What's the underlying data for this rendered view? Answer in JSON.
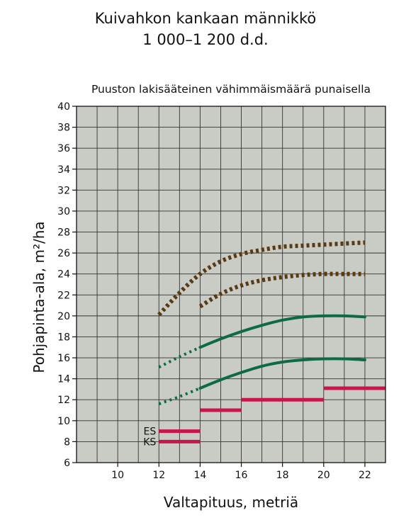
{
  "header": {
    "title_line1": "Kuivahkon kankaan männikkö",
    "title_line2": "1 000–1 200 d.d."
  },
  "chart_data": {
    "type": "line",
    "subtitle": "Puuston lakisääteinen vähimmäismäärä punaisella",
    "xlabel": "Valtapituus, metriä",
    "ylabel": "Pohjapinta-ala, m²/ha",
    "xlim": [
      8,
      23
    ],
    "ylim": [
      6,
      40
    ],
    "x_ticks": [
      10,
      12,
      14,
      16,
      18,
      20,
      22
    ],
    "y_ticks": [
      6,
      8,
      10,
      12,
      14,
      16,
      18,
      20,
      22,
      24,
      26,
      28,
      30,
      32,
      34,
      36,
      38,
      40
    ],
    "grid": true,
    "colors": {
      "background": "#c9ccc5",
      "upper_curves": "#5a3a14",
      "lower_curves": "#0d6b43",
      "minimum": "#c8154a"
    },
    "series": [
      {
        "style": "dotted",
        "color_key": "upper_curves",
        "points": [
          [
            12,
            20.1
          ],
          [
            13,
            22.2
          ],
          [
            14,
            24.0
          ],
          [
            15,
            25.2
          ],
          [
            16,
            25.9
          ],
          [
            17,
            26.3
          ],
          [
            18,
            26.6
          ],
          [
            19,
            26.7
          ],
          [
            20,
            26.8
          ],
          [
            21,
            26.9
          ],
          [
            22,
            27.0
          ]
        ]
      },
      {
        "style": "dotted",
        "color_key": "upper_curves",
        "points": [
          [
            14,
            20.9
          ],
          [
            15,
            22.1
          ],
          [
            16,
            22.9
          ],
          [
            17,
            23.4
          ],
          [
            18,
            23.7
          ],
          [
            19,
            23.9
          ],
          [
            20,
            24.0
          ],
          [
            21,
            24.0
          ],
          [
            22,
            24.0
          ]
        ]
      },
      {
        "style": "dotted",
        "color_key": "lower_curves",
        "points": [
          [
            12,
            15.1
          ],
          [
            13,
            16.1
          ],
          [
            14,
            17.0
          ]
        ]
      },
      {
        "style": "solid",
        "color_key": "lower_curves",
        "points": [
          [
            14,
            17.0
          ],
          [
            15,
            17.8
          ],
          [
            16,
            18.5
          ],
          [
            17,
            19.1
          ],
          [
            18,
            19.6
          ],
          [
            19,
            19.9
          ],
          [
            20,
            20.0
          ],
          [
            21,
            20.0
          ],
          [
            22,
            19.9
          ]
        ]
      },
      {
        "style": "dotted",
        "color_key": "lower_curves",
        "points": [
          [
            12,
            11.6
          ],
          [
            13,
            12.3
          ],
          [
            14,
            13.1
          ]
        ]
      },
      {
        "style": "solid",
        "color_key": "lower_curves",
        "points": [
          [
            14,
            13.1
          ],
          [
            15,
            13.9
          ],
          [
            16,
            14.6
          ],
          [
            17,
            15.2
          ],
          [
            18,
            15.6
          ],
          [
            19,
            15.8
          ],
          [
            20,
            15.9
          ],
          [
            21,
            15.9
          ],
          [
            22,
            15.8
          ]
        ]
      }
    ],
    "minimum_levels": [
      {
        "x_start": 12,
        "x_end": 14,
        "value": 9,
        "label": "ES"
      },
      {
        "x_start": 12,
        "x_end": 14,
        "value": 8,
        "label": "KS"
      },
      {
        "x_start": 14,
        "x_end": 16,
        "value": 11
      },
      {
        "x_start": 16,
        "x_end": 20,
        "value": 12
      },
      {
        "x_start": 20,
        "x_end": 23,
        "value": 13.1
      }
    ]
  }
}
